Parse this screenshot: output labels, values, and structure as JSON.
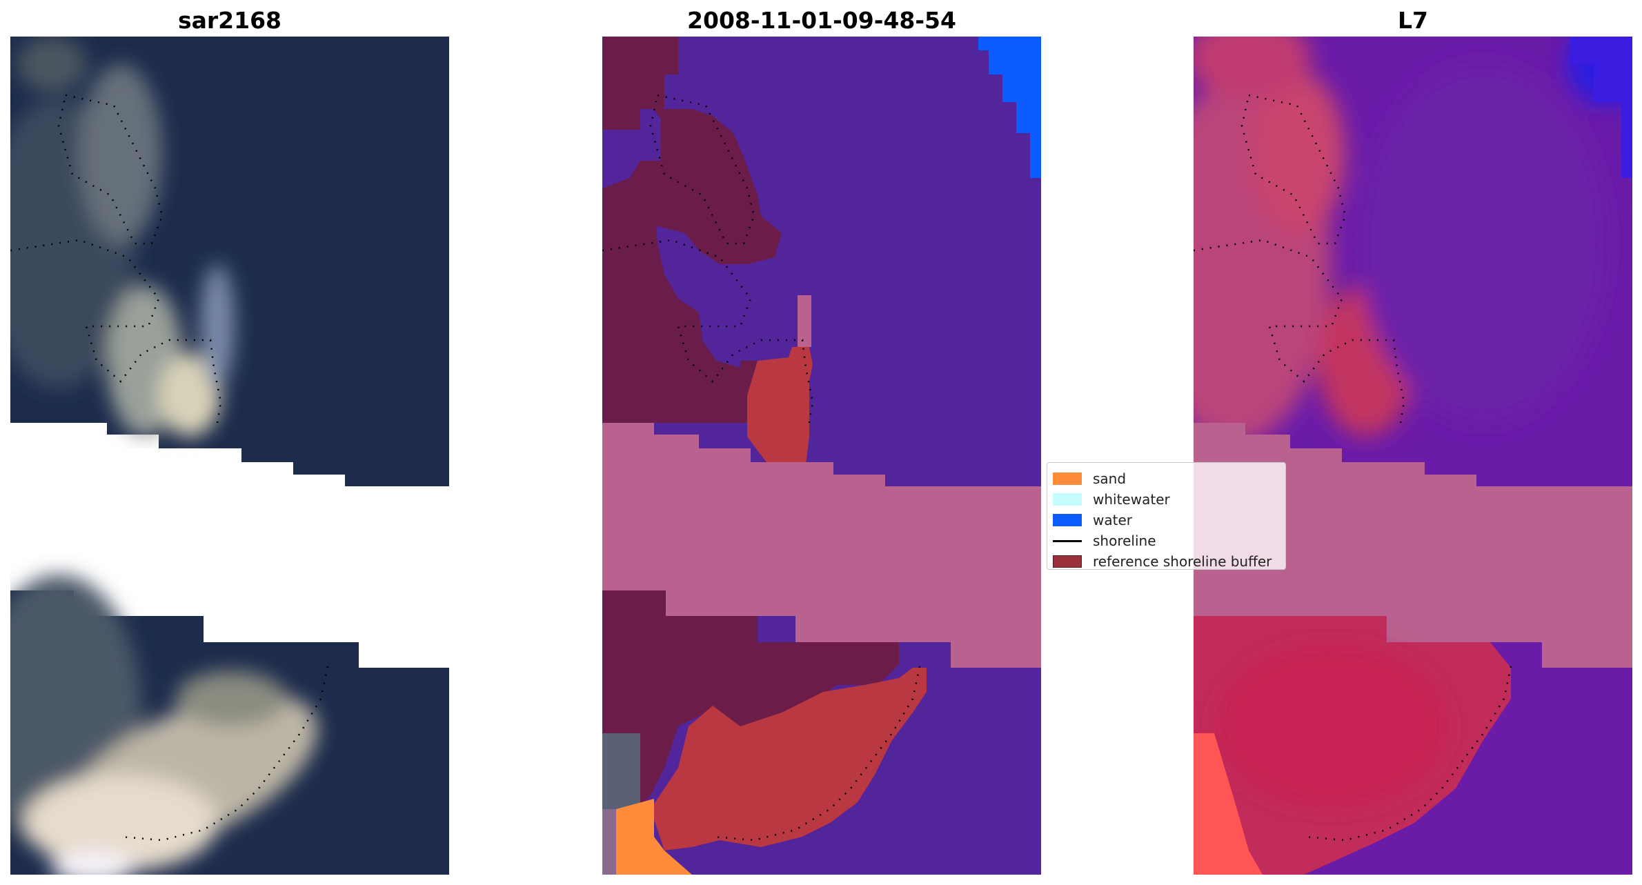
{
  "panels": [
    {
      "title": "sar2168"
    },
    {
      "title": "2008-11-01-09-48-54"
    },
    {
      "title": "L7"
    }
  ],
  "legend": {
    "items": [
      {
        "label": "sand",
        "color": "#ff8c3a",
        "kind": "patch"
      },
      {
        "label": "whitewater",
        "color": "#c8fdfd",
        "kind": "patch"
      },
      {
        "label": "water",
        "color": "#0a5cff",
        "kind": "patch"
      },
      {
        "label": "shoreline",
        "color": "#000000",
        "kind": "line"
      },
      {
        "label": "reference shoreline buffer",
        "color": "#99313a",
        "kind": "patch"
      }
    ]
  },
  "colors": {
    "rgb_water": "#1e2c4e",
    "rgb_dark": "#172744",
    "rgb_land": "#3d4a5c",
    "rgb_bright": "#e8e2cc",
    "class_water": "#52259a",
    "class_land": "#6b1c48",
    "class_sand": "#ff8c3a",
    "class_water_open": "#0a5cff",
    "class_buffer": "#b93841",
    "nodata_band": "#b9628f",
    "l7_land": "#c33463",
    "l7_water": "#6a1ba8",
    "l7_bright": "#ff5555"
  }
}
